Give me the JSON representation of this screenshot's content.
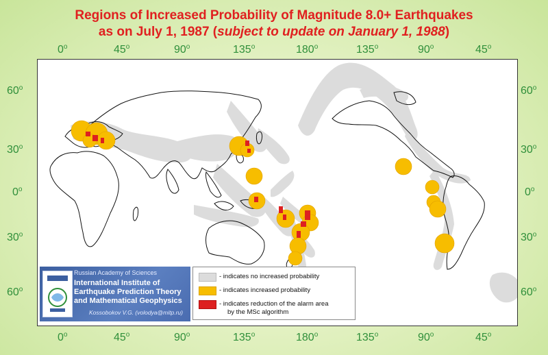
{
  "title": {
    "line1": "Regions of Increased Probability of Magnitude 8.0+ Earthquakes",
    "line2_prefix": "as on July 1, 1987 (",
    "line2_italic": "subject to update on January 1, 1988",
    "line2_suffix": ")"
  },
  "longitude_labels": [
    "0",
    "45",
    "90",
    "135",
    "180",
    "135",
    "90",
    "45"
  ],
  "latitude_labels": [
    "60",
    "30",
    "0",
    "30",
    "60"
  ],
  "degree_mark": "o",
  "institution": {
    "academy": "Russian Academy of Sciences",
    "name_line1": "International Institute of",
    "name_line2": "Earthquake Prediction Theory",
    "name_line3": "and Mathematical Geophysics",
    "author": "Kossobokov V.G. (volodya@mitp.ru)"
  },
  "legend": {
    "items": [
      {
        "label": "- indicates no increased probability",
        "color": "#dcdcdc"
      },
      {
        "label": "- indicates increased probability",
        "color": "#f7bd00"
      },
      {
        "label": "- indicates reduction of the alarm area",
        "label2": "by the MSc algorithm",
        "color": "#dd2020"
      }
    ]
  },
  "colors": {
    "title": "#e02020",
    "axis_labels": "#2f8f3a",
    "no_increase": "#dcdcdc",
    "increased": "#f7bd00",
    "reduced": "#dd2020"
  }
}
